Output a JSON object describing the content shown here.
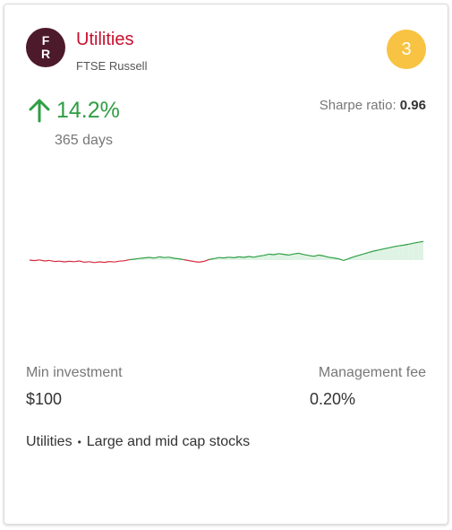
{
  "card": {
    "logo_letters": [
      "F",
      "R"
    ],
    "title": "Utilities",
    "provider": "FTSE Russell",
    "rank": "3",
    "return_value": "14.2%",
    "return_direction": "up",
    "return_period": "365 days",
    "sharpe_label": "Sharpe ratio:",
    "sharpe_value": "0.96",
    "min_investment_label": "Min investment",
    "min_investment_value": "$100",
    "management_fee_label": "Management fee",
    "management_fee_value": "0.20%",
    "tags": [
      "Utilities",
      "Large and mid cap stocks"
    ],
    "tag_separator": "•"
  },
  "colors": {
    "title": "#c8102e",
    "logo_bg": "#4d1a2b",
    "rank_badge": "#f8c342",
    "positive": "#2f9e44",
    "negative": "#d62b3f",
    "positive_fill": "#dff3e4"
  },
  "icons": {
    "return_arrow": "arrow-up-icon"
  },
  "chart_data": {
    "type": "line",
    "baseline": 0,
    "y": [
      0,
      -0.3,
      0.1,
      -0.5,
      -0.2,
      -0.8,
      -0.6,
      -1.0,
      -0.7,
      -0.9,
      -0.5,
      -1.2,
      -0.9,
      -1.4,
      -1.0,
      -1.3,
      -0.8,
      -1.1,
      -0.6,
      -0.4,
      0.2,
      0.5,
      0.9,
      1.2,
      1.5,
      1.1,
      1.8,
      1.4,
      1.6,
      1.0,
      0.7,
      0.2,
      -0.3,
      -0.8,
      -1.2,
      -0.7,
      0.3,
      0.8,
      1.4,
      1.2,
      1.6,
      1.3,
      1.8,
      1.5,
      2.0,
      1.6,
      2.2,
      2.6,
      3.3,
      3.0,
      3.6,
      3.2,
      2.8,
      3.4,
      3.8,
      3.1,
      2.6,
      2.1,
      2.8,
      2.3,
      1.6,
      1.2,
      0.7,
      -0.2,
      0.8,
      1.8,
      2.6,
      3.4,
      4.2,
      5.0,
      5.6,
      6.2,
      6.8,
      7.4,
      7.9,
      8.3,
      8.8,
      9.4,
      9.9,
      10.4
    ]
  }
}
